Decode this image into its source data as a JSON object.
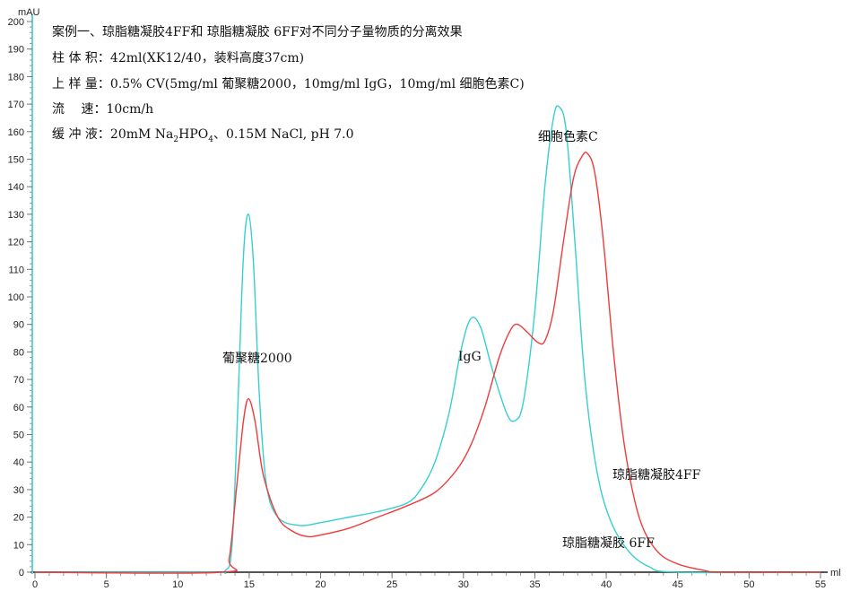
{
  "chart_data": {
    "type": "line",
    "ylabel": "mAU",
    "xlabel": "ml",
    "xlim": [
      0,
      55
    ],
    "ylim": [
      0,
      200
    ],
    "x_ticks": [
      0,
      5,
      10,
      15,
      20,
      25,
      30,
      35,
      40,
      45,
      50,
      55
    ],
    "y_ticks": [
      0,
      10,
      20,
      30,
      40,
      50,
      60,
      70,
      80,
      90,
      100,
      110,
      120,
      130,
      140,
      150,
      160,
      170,
      180,
      190,
      200
    ],
    "grid": false,
    "notes": {
      "title": "案例一、琼脂糖凝胶4FF和 琼脂糖凝胶 6FF对不同分子量物质的分离效果",
      "column_label": "柱 体 积：",
      "column_value": "42ml(XK12/40，装料高度37cm)",
      "load_label": "上 样 量：",
      "load_value": "0.5% CV(5mg/ml 葡聚糖2000，10mg/ml IgG，10mg/ml 细胞色素C)",
      "flow_label": "流　 速：",
      "flow_value": "10cm/h",
      "buffer_label": "缓 冲 液：",
      "buffer_value_pre": "20mM Na",
      "buffer_sub1": "2",
      "buffer_value_mid": "HPO",
      "buffer_sub2": "4",
      "buffer_value_post": "、0.15M NaCl, pH 7.0"
    },
    "annotations": {
      "dextran": "葡聚糖2000",
      "igg": "IgG",
      "cytc": "细胞色素C"
    },
    "series": [
      {
        "name": "琼脂糖凝胶 6FF",
        "color": "#35d0cf",
        "points": [
          [
            0,
            0
          ],
          [
            12,
            0
          ],
          [
            13.3,
            0.5
          ],
          [
            13.8,
            10
          ],
          [
            14.2,
            60
          ],
          [
            14.6,
            115
          ],
          [
            14.95,
            130
          ],
          [
            15.3,
            112
          ],
          [
            15.7,
            65
          ],
          [
            16.2,
            32
          ],
          [
            17,
            20
          ],
          [
            18.5,
            17
          ],
          [
            20,
            18
          ],
          [
            22,
            20
          ],
          [
            24,
            22
          ],
          [
            26,
            25
          ],
          [
            27,
            30
          ],
          [
            28,
            40
          ],
          [
            29,
            58
          ],
          [
            29.8,
            80
          ],
          [
            30.5,
            92
          ],
          [
            31.2,
            89
          ],
          [
            32,
            74
          ],
          [
            33,
            58
          ],
          [
            33.6,
            55
          ],
          [
            34.2,
            62
          ],
          [
            35,
            95
          ],
          [
            35.7,
            140
          ],
          [
            36.3,
            165
          ],
          [
            36.7,
            169
          ],
          [
            37.2,
            160
          ],
          [
            37.8,
            120
          ],
          [
            38.5,
            70
          ],
          [
            39.3,
            38
          ],
          [
            40.2,
            20
          ],
          [
            41.5,
            8
          ],
          [
            43,
            2
          ],
          [
            45,
            0
          ],
          [
            55,
            0
          ]
        ]
      },
      {
        "name": "琼脂糖凝胶4FF",
        "color": "#ef3b3b",
        "points": [
          [
            0,
            0
          ],
          [
            13,
            0
          ],
          [
            13.6,
            5
          ],
          [
            14.1,
            30
          ],
          [
            14.6,
            55
          ],
          [
            14.95,
            63
          ],
          [
            15.4,
            55
          ],
          [
            16,
            35
          ],
          [
            17,
            20
          ],
          [
            18,
            15
          ],
          [
            19,
            13
          ],
          [
            20,
            13.5
          ],
          [
            22,
            16
          ],
          [
            24,
            20
          ],
          [
            26,
            24
          ],
          [
            28,
            29
          ],
          [
            29.5,
            37
          ],
          [
            30.5,
            46
          ],
          [
            31.5,
            60
          ],
          [
            32.5,
            78
          ],
          [
            33.3,
            88
          ],
          [
            33.8,
            90
          ],
          [
            34.5,
            87
          ],
          [
            35.2,
            83.5
          ],
          [
            35.7,
            84
          ],
          [
            36.3,
            95
          ],
          [
            37,
            120
          ],
          [
            37.7,
            143
          ],
          [
            38.3,
            151
          ],
          [
            38.7,
            152
          ],
          [
            39.2,
            145
          ],
          [
            39.8,
            120
          ],
          [
            40.5,
            80
          ],
          [
            41.3,
            45
          ],
          [
            42.3,
            20
          ],
          [
            43.5,
            8
          ],
          [
            45,
            3
          ],
          [
            47,
            0.5
          ],
          [
            48,
            0
          ],
          [
            55,
            0
          ]
        ]
      }
    ]
  }
}
